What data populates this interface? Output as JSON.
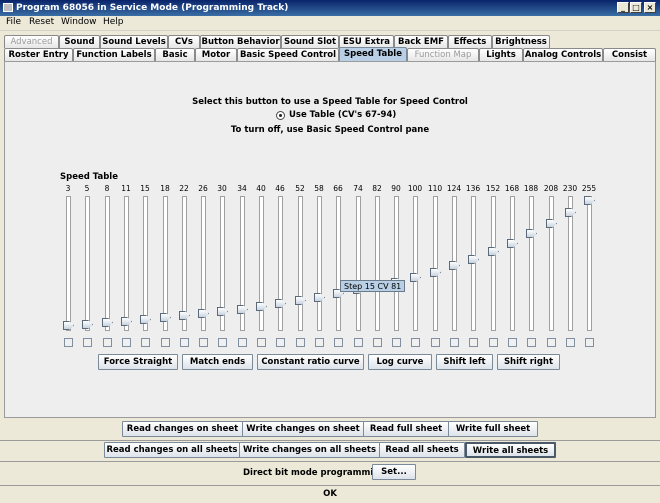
{
  "window": {
    "title": "Program 68056 in Service Mode (Programming Track)",
    "minimize": "_",
    "maximize": "□",
    "close": "×"
  },
  "menu": [
    "File",
    "Reset",
    "Window",
    "Help"
  ],
  "tabs_row1": [
    {
      "label": "Advanced",
      "disabled": true
    },
    {
      "label": "Sound"
    },
    {
      "label": "Sound Levels"
    },
    {
      "label": "CVs"
    },
    {
      "label": "Button Behavior"
    },
    {
      "label": "Sound Slot"
    },
    {
      "label": "ESU Extra"
    },
    {
      "label": "Back EMF"
    },
    {
      "label": "Effects"
    },
    {
      "label": "Brightness"
    }
  ],
  "tabs_row2": [
    {
      "label": "Roster Entry"
    },
    {
      "label": "Function Labels"
    },
    {
      "label": "Basic"
    },
    {
      "label": "Motor"
    },
    {
      "label": "Basic Speed Control"
    },
    {
      "label": "Speed Table",
      "selected": true
    },
    {
      "label": "Function Map",
      "disabled": true
    },
    {
      "label": "Lights"
    },
    {
      "label": "Analog Controls"
    },
    {
      "label": "Consist"
    }
  ],
  "speed_panel": {
    "instruction": "Select this button to use a Speed Table for Speed Control",
    "use_table_label": "Use Table (CV's 67-94)",
    "use_table_selected": true,
    "turn_off_text": "To turn off, use Basic Speed Control pane",
    "speed_table_label": "Speed Table",
    "max_value": 255,
    "values": [
      3,
      5,
      8,
      11,
      15,
      18,
      22,
      26,
      30,
      34,
      40,
      46,
      52,
      58,
      66,
      74,
      82,
      90,
      100,
      110,
      124,
      136,
      152,
      168,
      188,
      208,
      230,
      255
    ],
    "tooltip": "Step 15 CV 81",
    "buttons": [
      "Force Straight",
      "Match ends",
      "Constant ratio curve",
      "Log curve",
      "Shift left",
      "Shift right"
    ]
  },
  "sheet_buttons_row1": [
    "Read changes on sheet",
    "Write changes on sheet",
    "Read full sheet",
    "Write full sheet"
  ],
  "sheet_buttons_row2": [
    "Read changes on all sheets",
    "Write changes on all sheets",
    "Read all sheets",
    "Write all sheets"
  ],
  "direct_bit_label": "Direct bit mode programming",
  "set_button": "Set...",
  "status": "OK"
}
